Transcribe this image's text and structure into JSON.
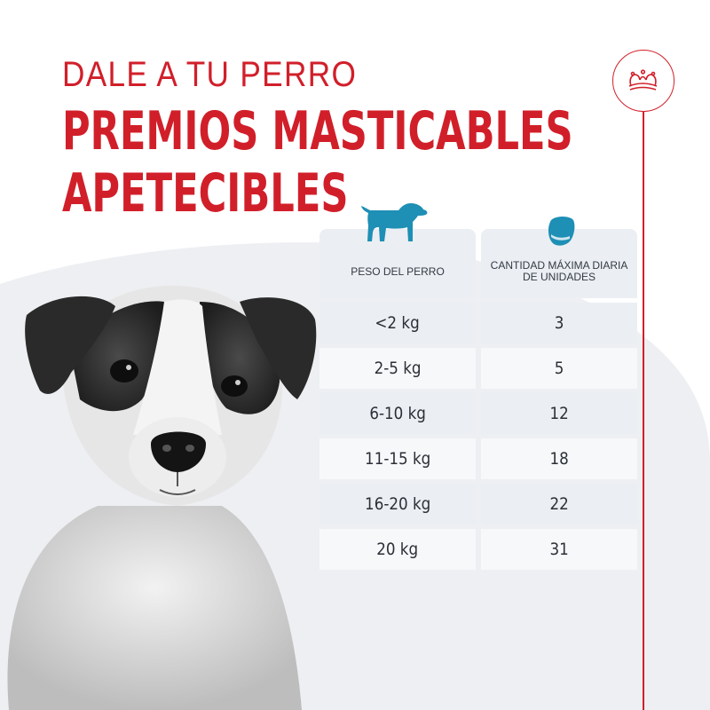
{
  "headline": {
    "line1": "DALE A TU PERRO",
    "line2": "PREMIOS MASTICABLES",
    "line3": "APETECIBLES"
  },
  "brand": {
    "logo_icon": "crown-icon",
    "accent_color": "#d11f2a"
  },
  "table": {
    "col1_header": "PESO DEL PERRO",
    "col1_icon": "dog-silhouette-icon",
    "col2_header_line1": "CANTIDAD MÁXIMA DIARIA",
    "col2_header_line2": "DE UNIDADES",
    "col2_icon": "treat-icon",
    "icon_color": "#1e8fb5",
    "rows": [
      {
        "weight": "<2 kg",
        "units": "3"
      },
      {
        "weight": "2-5 kg",
        "units": "5"
      },
      {
        "weight": "6-10 kg",
        "units": "12"
      },
      {
        "weight": "11-15 kg",
        "units": "18"
      },
      {
        "weight": "16-20 kg",
        "units": "22"
      },
      {
        "weight": "20 kg",
        "units": "31"
      }
    ]
  }
}
